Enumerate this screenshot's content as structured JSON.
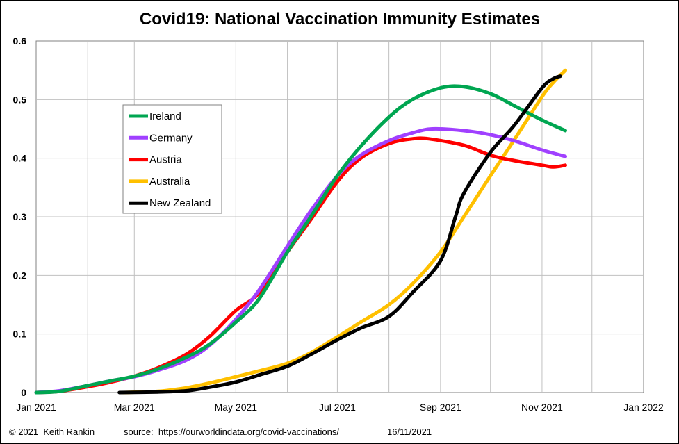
{
  "footer": {
    "copyright": "© 2021  Keith Rankin",
    "source": "source:  https://ourworldindata.org/covid-vaccinations/",
    "date": "16/11/2021"
  },
  "chart_data": {
    "type": "line",
    "title": "Covid19: National Vaccination Immunity Estimates",
    "xlabel": "",
    "ylabel": "",
    "x_ticks": [
      "Jan 2021",
      "Mar 2021",
      "May 2021",
      "Jul 2021",
      "Sep 2021",
      "Nov 2021",
      "Jan 2022"
    ],
    "y_ticks": [
      "0",
      "0.1",
      "0.2",
      "0.3",
      "0.4",
      "0.5",
      "0.6"
    ],
    "xlim": [
      "2021-01-01",
      "2022-01-01"
    ],
    "ylim": [
      0,
      0.6
    ],
    "grid": true,
    "legend_position": "top-left",
    "series": [
      {
        "name": "Ireland",
        "color": "#00a651",
        "points": [
          [
            "2021-01-01",
            0
          ],
          [
            "2021-01-15",
            0.002
          ],
          [
            "2021-02-01",
            0.012
          ],
          [
            "2021-02-15",
            0.02
          ],
          [
            "2021-03-01",
            0.028
          ],
          [
            "2021-03-15",
            0.04
          ],
          [
            "2021-04-01",
            0.06
          ],
          [
            "2021-04-15",
            0.082
          ],
          [
            "2021-05-01",
            0.12
          ],
          [
            "2021-05-15",
            0.16
          ],
          [
            "2021-06-01",
            0.24
          ],
          [
            "2021-06-15",
            0.3
          ],
          [
            "2021-07-01",
            0.37
          ],
          [
            "2021-07-15",
            0.42
          ],
          [
            "2021-08-01",
            0.47
          ],
          [
            "2021-08-15",
            0.5
          ],
          [
            "2021-09-01",
            0.52
          ],
          [
            "2021-09-15",
            0.522
          ],
          [
            "2021-10-01",
            0.51
          ],
          [
            "2021-10-15",
            0.49
          ],
          [
            "2021-11-01",
            0.465
          ],
          [
            "2021-11-15",
            0.447
          ]
        ]
      },
      {
        "name": "Germany",
        "color": "#a040ff",
        "points": [
          [
            "2021-01-01",
            0
          ],
          [
            "2021-01-15",
            0.003
          ],
          [
            "2021-02-01",
            0.012
          ],
          [
            "2021-02-15",
            0.02
          ],
          [
            "2021-03-01",
            0.027
          ],
          [
            "2021-03-15",
            0.038
          ],
          [
            "2021-04-01",
            0.055
          ],
          [
            "2021-04-15",
            0.08
          ],
          [
            "2021-05-01",
            0.125
          ],
          [
            "2021-05-15",
            0.175
          ],
          [
            "2021-06-01",
            0.25
          ],
          [
            "2021-06-15",
            0.31
          ],
          [
            "2021-07-01",
            0.37
          ],
          [
            "2021-07-15",
            0.405
          ],
          [
            "2021-08-01",
            0.43
          ],
          [
            "2021-08-15",
            0.443
          ],
          [
            "2021-08-27",
            0.45
          ],
          [
            "2021-09-15",
            0.447
          ],
          [
            "2021-10-01",
            0.44
          ],
          [
            "2021-10-15",
            0.43
          ],
          [
            "2021-11-01",
            0.414
          ],
          [
            "2021-11-15",
            0.403
          ]
        ]
      },
      {
        "name": "Austria",
        "color": "#ff0000",
        "points": [
          [
            "2021-01-01",
            0
          ],
          [
            "2021-01-15",
            0.002
          ],
          [
            "2021-02-01",
            0.01
          ],
          [
            "2021-02-15",
            0.018
          ],
          [
            "2021-03-01",
            0.028
          ],
          [
            "2021-03-15",
            0.042
          ],
          [
            "2021-04-01",
            0.065
          ],
          [
            "2021-04-15",
            0.095
          ],
          [
            "2021-05-01",
            0.14
          ],
          [
            "2021-05-15",
            0.17
          ],
          [
            "2021-06-01",
            0.24
          ],
          [
            "2021-06-15",
            0.295
          ],
          [
            "2021-07-01",
            0.36
          ],
          [
            "2021-07-15",
            0.4
          ],
          [
            "2021-08-01",
            0.425
          ],
          [
            "2021-08-15",
            0.433
          ],
          [
            "2021-08-25",
            0.433
          ],
          [
            "2021-09-15",
            0.422
          ],
          [
            "2021-10-01",
            0.405
          ],
          [
            "2021-10-15",
            0.396
          ],
          [
            "2021-11-01",
            0.388
          ],
          [
            "2021-11-08",
            0.385
          ],
          [
            "2021-11-15",
            0.388
          ]
        ]
      },
      {
        "name": "Australia",
        "color": "#ffc000",
        "points": [
          [
            "2021-02-22",
            0
          ],
          [
            "2021-03-15",
            0.002
          ],
          [
            "2021-04-01",
            0.008
          ],
          [
            "2021-04-15",
            0.016
          ],
          [
            "2021-05-01",
            0.027
          ],
          [
            "2021-05-15",
            0.037
          ],
          [
            "2021-06-01",
            0.05
          ],
          [
            "2021-06-15",
            0.068
          ],
          [
            "2021-07-01",
            0.095
          ],
          [
            "2021-07-15",
            0.12
          ],
          [
            "2021-08-01",
            0.15
          ],
          [
            "2021-08-15",
            0.185
          ],
          [
            "2021-09-01",
            0.24
          ],
          [
            "2021-09-15",
            0.3
          ],
          [
            "2021-10-01",
            0.37
          ],
          [
            "2021-10-15",
            0.43
          ],
          [
            "2021-11-01",
            0.505
          ],
          [
            "2021-11-08",
            0.53
          ],
          [
            "2021-11-15",
            0.55
          ]
        ]
      },
      {
        "name": "New Zealand",
        "color": "#000000",
        "points": [
          [
            "2021-02-20",
            0
          ],
          [
            "2021-03-15",
            0.001
          ],
          [
            "2021-04-01",
            0.003
          ],
          [
            "2021-04-15",
            0.009
          ],
          [
            "2021-05-01",
            0.018
          ],
          [
            "2021-05-15",
            0.03
          ],
          [
            "2021-06-01",
            0.045
          ],
          [
            "2021-06-15",
            0.065
          ],
          [
            "2021-07-01",
            0.09
          ],
          [
            "2021-07-15",
            0.11
          ],
          [
            "2021-08-01",
            0.13
          ],
          [
            "2021-08-15",
            0.17
          ],
          [
            "2021-09-01",
            0.225
          ],
          [
            "2021-09-10",
            0.3
          ],
          [
            "2021-09-15",
            0.34
          ],
          [
            "2021-10-01",
            0.41
          ],
          [
            "2021-10-15",
            0.455
          ],
          [
            "2021-11-01",
            0.52
          ],
          [
            "2021-11-08",
            0.536
          ],
          [
            "2021-11-12",
            0.54
          ]
        ]
      }
    ]
  }
}
